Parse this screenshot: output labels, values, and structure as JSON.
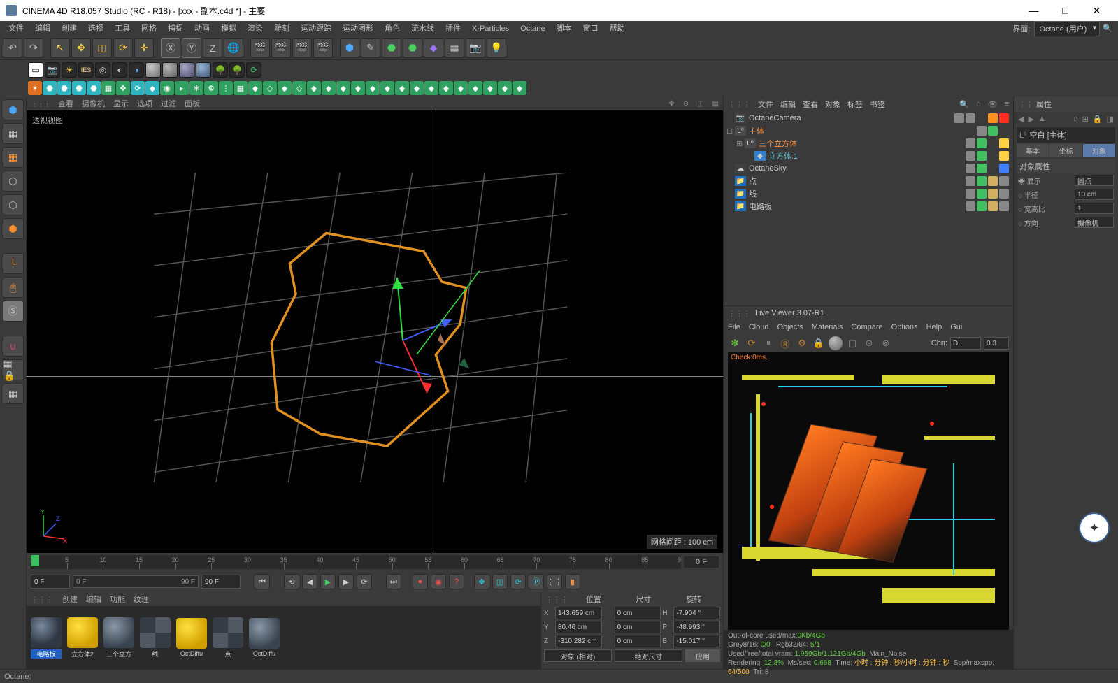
{
  "titlebar": {
    "text": "CINEMA 4D R18.057 Studio (RC - R18) - [xxx - 副本.c4d *] - 主要"
  },
  "menubar": {
    "items": [
      "文件",
      "编辑",
      "创建",
      "选择",
      "工具",
      "网格",
      "捕捉",
      "动画",
      "模拟",
      "渲染",
      "雕刻",
      "运动跟踪",
      "运动图形",
      "角色",
      "流水线",
      "插件",
      "X-Particles",
      "Octane",
      "脚本",
      "窗口",
      "帮助"
    ],
    "iface_label": "界面:",
    "iface_value": "Octane (用户)"
  },
  "viewport": {
    "menus": [
      "查看",
      "摄像机",
      "显示",
      "选项",
      "过滤",
      "面板"
    ],
    "label": "透视视图",
    "grid_info": "网格间距 : 100 cm"
  },
  "timeline": {
    "ticks": [
      0,
      5,
      10,
      15,
      20,
      25,
      30,
      35,
      40,
      45,
      50,
      55,
      60,
      65,
      70,
      75,
      80,
      85,
      90
    ],
    "end_label": "0 F",
    "range_start": "0 F",
    "range_end": "90 F",
    "slider_a": "0 F",
    "slider_b": "90 F"
  },
  "materials": {
    "menus": [
      "创建",
      "编辑",
      "功能",
      "纹理"
    ],
    "slots": [
      {
        "name": "电路板",
        "style": "background:radial-gradient(circle at 35% 30%, #7a8aa0, #303844 60%);"
      },
      {
        "name": "立方体2",
        "style": "background:radial-gradient(circle at 35% 30%, #ffe040, #d0a000 70%);"
      },
      {
        "name": "三个立方",
        "style": "background:radial-gradient(circle at 35% 30%, #8a98a8, #3a4450 70%);"
      },
      {
        "name": "线",
        "style": "background:repeating-conic-gradient(#525862 0 25%, #363c44 0 50%);"
      },
      {
        "name": "OctDiffu",
        "style": "background:radial-gradient(circle at 35% 30%, #ffe040, #d0a000 70%);"
      },
      {
        "name": "点",
        "style": "background:repeating-conic-gradient(#525862 0 25%, #363c44 0 50%);"
      },
      {
        "name": "OctDiffu",
        "style": "background:radial-gradient(circle at 35% 30%, #8a98a8, #3a4450 70%);"
      }
    ]
  },
  "coords": {
    "hdr": [
      "位置",
      "尺寸",
      "旋转"
    ],
    "rows": [
      {
        "l": "X",
        "p": "143.659 cm",
        "s": "0 cm",
        "r": "-7.904 °",
        "rl": "H"
      },
      {
        "l": "Y",
        "p": "80.46 cm",
        "s": "0 cm",
        "r": "-48.993 °",
        "rl": "P"
      },
      {
        "l": "Z",
        "p": "-310.282 cm",
        "s": "0 cm",
        "r": "-15.017 °",
        "rl": "B"
      }
    ],
    "mode_a": "对象 (相对)",
    "mode_b": "绝对尺寸",
    "apply": "应用"
  },
  "objmgr": {
    "menus": [
      "文件",
      "编辑",
      "查看",
      "对象",
      "标签",
      "书签"
    ],
    "tree": [
      {
        "depth": 0,
        "exp": "",
        "icon": "📷",
        "iconbg": "#404040",
        "name": "OctaneCamera",
        "cls": ""
      },
      {
        "depth": 0,
        "exp": "⊟",
        "icon": "L⁰",
        "iconbg": "#4a4a4a",
        "name": "主体",
        "cls": "orange"
      },
      {
        "depth": 1,
        "exp": "⊞",
        "icon": "L⁰",
        "iconbg": "#4a4a4a",
        "name": "三个立方体",
        "cls": "orange"
      },
      {
        "depth": 2,
        "exp": "",
        "icon": "◆",
        "iconbg": "#3080d0",
        "name": "立方体.1",
        "cls": "cyan"
      },
      {
        "depth": 0,
        "exp": "",
        "icon": "☁",
        "iconbg": "#404040",
        "name": "OctaneSky",
        "cls": ""
      },
      {
        "depth": 0,
        "exp": "",
        "icon": "📁",
        "iconbg": "#2070c0",
        "name": "点",
        "cls": ""
      },
      {
        "depth": 0,
        "exp": "",
        "icon": "📁",
        "iconbg": "#2070c0",
        "name": "线",
        "cls": ""
      },
      {
        "depth": 0,
        "exp": "",
        "icon": "📁",
        "iconbg": "#2070c0",
        "name": "电路板",
        "cls": ""
      }
    ]
  },
  "liveviewer": {
    "title": "Live Viewer 3.07-R1",
    "menus": [
      "File",
      "Cloud",
      "Objects",
      "Materials",
      "Compare",
      "Options",
      "Help",
      "Gui"
    ],
    "chn_label": "Chn:",
    "chn_value": "DL",
    "chn_num": "0.3",
    "check": "Check:0ms.",
    "status": {
      "ooc": "Out-of-core used/max:",
      "ooc_v": "0Kb/4Gb",
      "grey": "Grey8/16:",
      "grey_v": "0/0",
      "rgb": "Rgb32/64:",
      "rgb_v": "5/1",
      "vram": "Used/free/total vram:",
      "vram_v": "1.959Gb/1.121Gb/4Gb",
      "main_noise": "Main_Noise",
      "rendering": "Rendering:",
      "rendering_v": "12.8%",
      "mssec": "Ms/sec:",
      "mssec_v": "0.668",
      "time": "Time:",
      "time_v": "小时 : 分钟 : 秒/小时 : 分钟 : 秒",
      "spp": "Spp/maxspp:",
      "spp_v": "64/500",
      "tri": "Tri: 8"
    },
    "colors": {
      "pcb": "#0a0a0a",
      "yellow": "#d8d830",
      "cyan": "#20d0e0",
      "orange": "#ff7a20"
    }
  },
  "attrs": {
    "title": "属性",
    "obj": "空白 [主体]",
    "tabs": [
      "基本",
      "坐标",
      "对象"
    ],
    "section": "对象属性",
    "props": [
      {
        "l": "◉ 显示",
        "v": "圆点"
      },
      {
        "l": "◌ 半径",
        "v": "10 cm"
      },
      {
        "l": "◌ 宽高比",
        "v": "1"
      },
      {
        "l": "◌ 方向",
        "v": "摄像机"
      }
    ]
  },
  "statusbar": {
    "text": "Octane:"
  }
}
